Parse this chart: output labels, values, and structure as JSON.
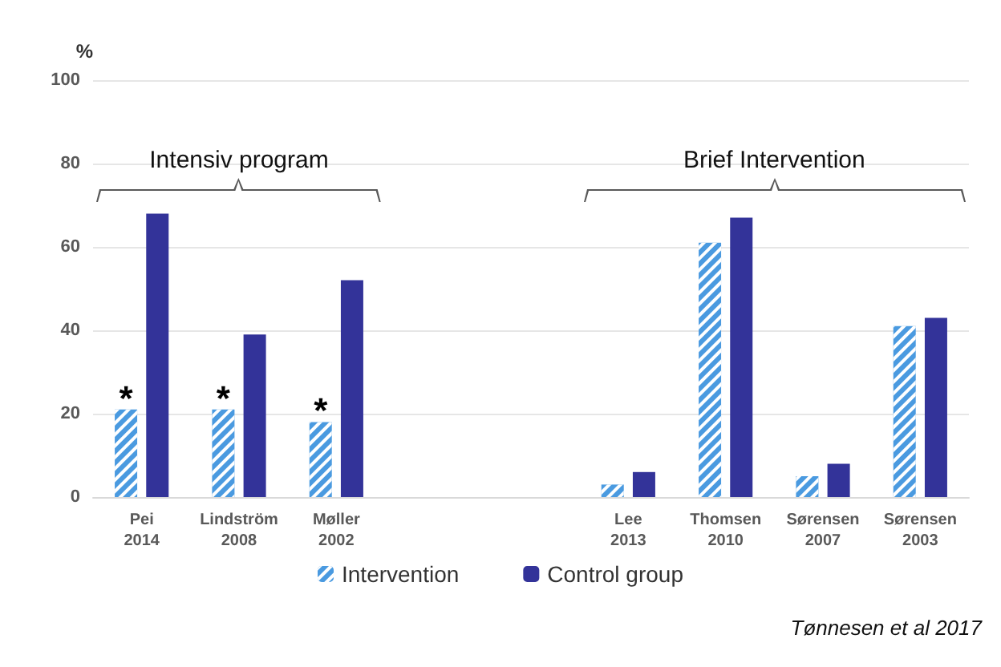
{
  "chart_data": {
    "type": "bar",
    "ylabel": "%",
    "categories": [
      "Pei\n2014",
      "Lindström\n2008",
      "Møller\n2002",
      null,
      null,
      "Lee\n2013",
      "Thomsen\n2010",
      "Sørensen\n2007",
      "Sørensen\n2003"
    ],
    "series": [
      {
        "name": "Intervention",
        "color": "#4a9ae0",
        "values": [
          21,
          21,
          18,
          null,
          null,
          3,
          61,
          5,
          41
        ]
      },
      {
        "name": "Control group",
        "color": "#333399",
        "values": [
          68,
          39,
          52,
          null,
          null,
          6,
          67,
          8,
          43
        ]
      }
    ],
    "ylim": [
      0,
      100
    ],
    "yticks": [
      0,
      20,
      40,
      60,
      80,
      100
    ],
    "grid": "y",
    "legend": "bottom",
    "annotations": [
      "Intensiv program",
      "Brief Intervention",
      {
        "text": "*",
        "x": "Pei\n2014",
        "y": 21
      },
      {
        "text": "*",
        "x": "Lindström\n2008",
        "y": 21
      },
      {
        "text": "*",
        "x": "Møller\n2002",
        "y": 18
      },
      "Tønnesen et al 2017"
    ]
  }
}
